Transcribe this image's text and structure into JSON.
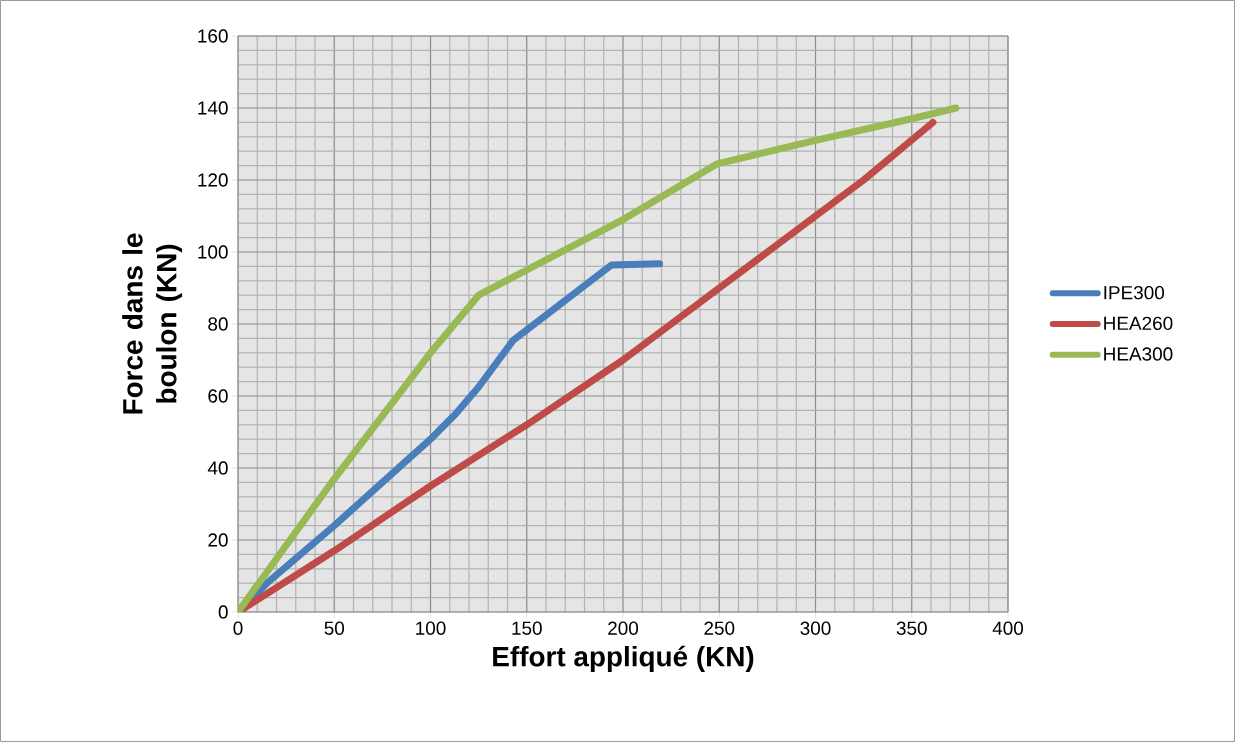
{
  "chart_data": {
    "type": "line",
    "xlabel": "Effort appliqué (KN)",
    "ylabel": "Force dans le boulon (KN)",
    "xlim": [
      0,
      400
    ],
    "ylim": [
      0,
      160
    ],
    "xticks": [
      0,
      50,
      100,
      150,
      200,
      250,
      300,
      350,
      400
    ],
    "yticks": [
      0,
      20,
      40,
      60,
      80,
      100,
      120,
      140,
      160
    ],
    "grid": true,
    "legend": "right",
    "marker": "none",
    "line_style": "solid",
    "series": [
      {
        "name": "IPE300",
        "color": "#4a7ebb",
        "x": [
          0,
          15,
          50,
          100,
          113,
          125,
          143,
          194,
          219
        ],
        "values": [
          0,
          8,
          24,
          48,
          55,
          62.5,
          75.5,
          96.4,
          96.7
        ]
      },
      {
        "name": "HEA260",
        "color": "#be4b48",
        "x": [
          0,
          50,
          100,
          150,
          200,
          250,
          300,
          325,
          361
        ],
        "values": [
          0,
          17,
          35,
          52,
          70,
          90,
          110,
          120,
          136
        ]
      },
      {
        "name": "HEA300",
        "color": "#98b954",
        "x": [
          0,
          50,
          100,
          125,
          150,
          200,
          249,
          300,
          350,
          373
        ],
        "values": [
          0,
          37,
          72,
          88,
          95,
          109,
          124.5,
          131,
          137,
          140
        ]
      }
    ]
  }
}
